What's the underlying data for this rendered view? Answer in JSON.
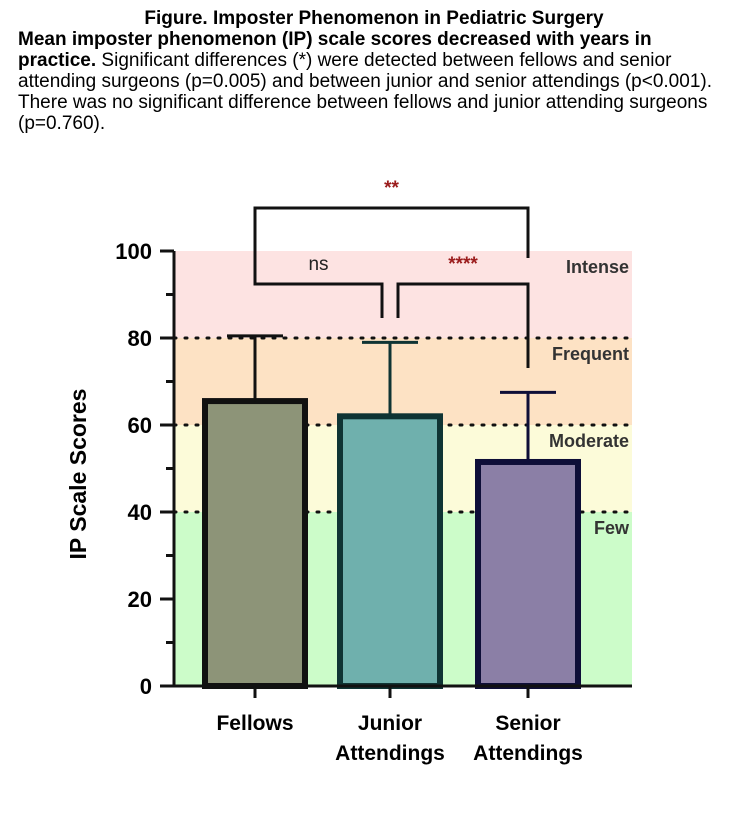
{
  "caption": {
    "figure_title": "Figure. Imposter Phenomenon in Pediatric Surgery",
    "lead": "Mean imposter phenomenon (IP) scale scores decreased with years in practice.",
    "body": " Significant differences (*) were detected between fellows and senior attending surgeons (p=0.005) and between junior and senior attendings (p<0.001). There was no significant difference between fellows and junior attending surgeons (p=0.760)."
  },
  "chart_data": {
    "type": "bar",
    "ylabel": "IP Scale Scores",
    "ylim": [
      0,
      100
    ],
    "yticks": [
      0,
      20,
      40,
      60,
      80,
      100
    ],
    "categories": [
      {
        "line1": "Fellows",
        "line2": ""
      },
      {
        "line1": "Junior",
        "line2": "Attendings"
      },
      {
        "line1": "Senior",
        "line2": "Attendings"
      }
    ],
    "values": [
      65.5,
      62,
      51.5
    ],
    "error_upper": [
      80.5,
      79,
      67.5
    ],
    "bar_fill": [
      "#8d9478",
      "#6fb0ad",
      "#8b7fa6"
    ],
    "bar_stroke": [
      "#111111",
      "#0f3434",
      "#0e0e38"
    ],
    "zones": [
      {
        "label": "Few",
        "from": 0,
        "to": 40,
        "color": "#ccfcc9"
      },
      {
        "label": "Moderate",
        "from": 40,
        "to": 60,
        "color": "#fcfbd9"
      },
      {
        "label": "Frequent",
        "from": 60,
        "to": 80,
        "color": "#fde2c4"
      },
      {
        "label": "Intense",
        "from": 80,
        "to": 100,
        "color": "#fde3e2"
      }
    ],
    "significance": [
      {
        "from": 0,
        "to": 1,
        "label": "ns",
        "color": "#222222"
      },
      {
        "from": 1,
        "to": 2,
        "label": "****",
        "color": "#9b1c1c"
      },
      {
        "from": 0,
        "to": 2,
        "label": "**",
        "color": "#9b1c1c"
      }
    ],
    "grid": false
  }
}
